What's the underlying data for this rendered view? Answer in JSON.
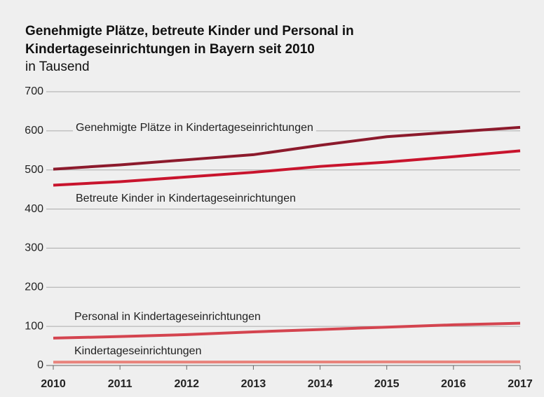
{
  "chart_data": {
    "type": "line",
    "title": "Genehmigte Plätze, betreute Kinder und Personal in Kindertageseinrichtungen in Bayern seit 2010",
    "subtitle": "in Tausend",
    "x": [
      2010,
      2011,
      2012,
      2013,
      2014,
      2015,
      2016,
      2017
    ],
    "xlim": [
      2010,
      2017
    ],
    "xticks": [
      2010,
      2011,
      2012,
      2013,
      2014,
      2015,
      2016,
      2017
    ],
    "ylim": [
      0,
      700
    ],
    "yticks": [
      0,
      100,
      200,
      300,
      400,
      500,
      600,
      700
    ],
    "grid": true,
    "series": [
      {
        "name": "Genehmigte Plätze in Kindertageseinrichtungen",
        "color": "#8c1a2c",
        "values": [
          502,
          513,
          526,
          539,
          563,
          585,
          597,
          609
        ]
      },
      {
        "name": "Betreute Kinder in Kindertageseinrichtungen",
        "color": "#c8142d",
        "values": [
          461,
          470,
          482,
          494,
          509,
          520,
          534,
          549
        ]
      },
      {
        "name": "Personal in Kindertageseinrichtungen",
        "color": "#d4444f",
        "values": [
          70,
          74,
          79,
          86,
          92,
          98,
          104,
          108
        ]
      },
      {
        "name": "Kindertageseinrichtungen",
        "color": "#e8837c",
        "values": [
          8.6,
          8.7,
          8.8,
          8.9,
          9.0,
          9.1,
          9.2,
          9.3
        ]
      }
    ]
  }
}
